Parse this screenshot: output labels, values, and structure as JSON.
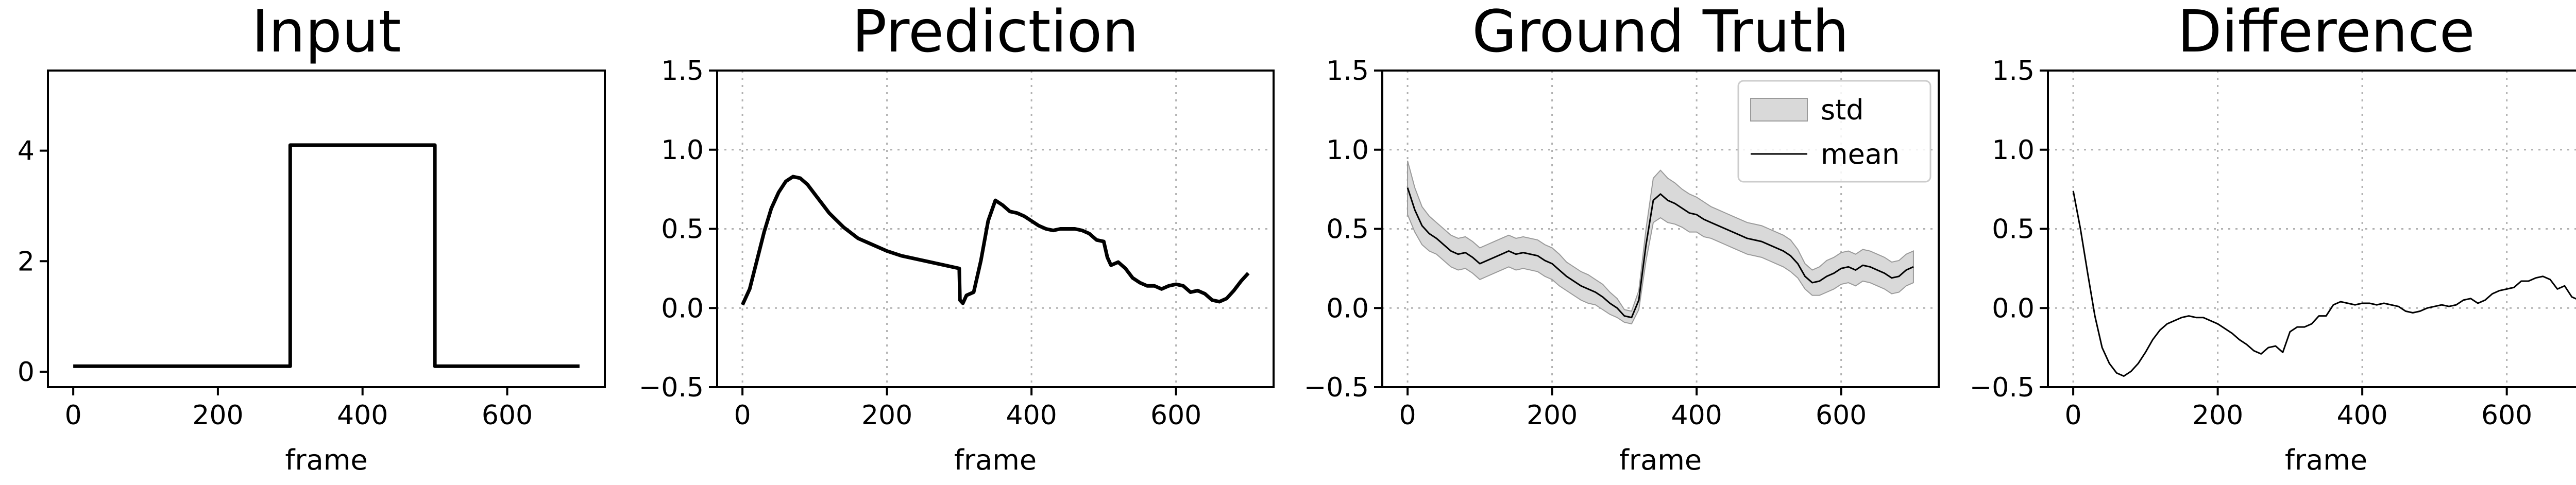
{
  "chart_data": [
    {
      "type": "line",
      "title": "Input",
      "xlabel": "frame",
      "ylabel": "",
      "xlim": [
        -35,
        735
      ],
      "ylim": [
        -0.28,
        5.45
      ],
      "xticks": [
        "0",
        "200",
        "400",
        "600"
      ],
      "yticks": [
        "0",
        "2",
        "4"
      ],
      "grid": false,
      "series": [
        {
          "color": "#000000",
          "x": [
            0,
            300,
            300,
            500,
            500,
            700
          ],
          "y": [
            0.1,
            0.1,
            4.1,
            4.1,
            0.1,
            0.1
          ]
        }
      ]
    },
    {
      "type": "line",
      "title": "Prediction",
      "xlabel": "frame",
      "ylabel": "",
      "xlim": [
        -35,
        735
      ],
      "ylim": [
        -0.5,
        1.5
      ],
      "xticks": [
        "0",
        "200",
        "400",
        "600"
      ],
      "yticks": [
        "−0.5",
        "0.0",
        "0.5",
        "1.0",
        "1.5"
      ],
      "grid": true,
      "series": [
        {
          "color": "#000000",
          "x": [
            0,
            10,
            20,
            30,
            40,
            50,
            60,
            70,
            80,
            90,
            100,
            110,
            120,
            140,
            160,
            180,
            200,
            220,
            240,
            260,
            280,
            300,
            301,
            305,
            310,
            320,
            330,
            340,
            350,
            360,
            370,
            380,
            390,
            400,
            410,
            420,
            430,
            440,
            450,
            460,
            470,
            480,
            490,
            500,
            505,
            510,
            520,
            530,
            540,
            550,
            560,
            570,
            580,
            590,
            600,
            610,
            620,
            630,
            640,
            650,
            660,
            670,
            680,
            690,
            700
          ],
          "y": [
            0.02,
            0.12,
            0.3,
            0.48,
            0.63,
            0.73,
            0.8,
            0.83,
            0.82,
            0.78,
            0.72,
            0.66,
            0.6,
            0.51,
            0.44,
            0.4,
            0.36,
            0.33,
            0.31,
            0.29,
            0.27,
            0.25,
            0.05,
            0.03,
            0.08,
            0.1,
            0.3,
            0.55,
            0.68,
            0.65,
            0.61,
            0.6,
            0.58,
            0.55,
            0.52,
            0.5,
            0.49,
            0.5,
            0.5,
            0.5,
            0.49,
            0.47,
            0.43,
            0.42,
            0.32,
            0.27,
            0.29,
            0.25,
            0.19,
            0.16,
            0.14,
            0.14,
            0.12,
            0.14,
            0.15,
            0.14,
            0.1,
            0.11,
            0.09,
            0.05,
            0.04,
            0.06,
            0.11,
            0.17,
            0.22
          ]
        }
      ]
    },
    {
      "type": "area",
      "title": "Ground Truth",
      "xlabel": "frame",
      "ylabel": "",
      "xlim": [
        -35,
        735
      ],
      "ylim": [
        -0.5,
        1.5
      ],
      "xticks": [
        "0",
        "200",
        "400",
        "600"
      ],
      "yticks": [
        "−0.5",
        "0.0",
        "0.5",
        "1.0",
        "1.5"
      ],
      "grid": true,
      "legend": {
        "position": "top-right",
        "entries": [
          "std",
          "mean"
        ]
      },
      "series": [
        {
          "name": "mean",
          "color": "#000000",
          "x": [
            0,
            10,
            20,
            30,
            40,
            50,
            60,
            70,
            80,
            90,
            100,
            110,
            120,
            130,
            140,
            150,
            160,
            170,
            180,
            190,
            200,
            210,
            220,
            230,
            240,
            250,
            260,
            270,
            280,
            290,
            300,
            310,
            320,
            330,
            340,
            350,
            360,
            370,
            380,
            390,
            400,
            410,
            420,
            430,
            440,
            450,
            460,
            470,
            480,
            490,
            500,
            510,
            520,
            530,
            540,
            550,
            560,
            570,
            580,
            590,
            600,
            610,
            620,
            630,
            640,
            650,
            660,
            670,
            680,
            690,
            700
          ],
          "y": [
            0.76,
            0.62,
            0.52,
            0.47,
            0.44,
            0.4,
            0.36,
            0.34,
            0.35,
            0.32,
            0.28,
            0.3,
            0.32,
            0.34,
            0.36,
            0.34,
            0.35,
            0.34,
            0.33,
            0.3,
            0.28,
            0.24,
            0.2,
            0.17,
            0.14,
            0.12,
            0.1,
            0.07,
            0.03,
            0.0,
            -0.05,
            -0.06,
            0.05,
            0.4,
            0.68,
            0.72,
            0.68,
            0.66,
            0.63,
            0.6,
            0.59,
            0.56,
            0.54,
            0.52,
            0.5,
            0.48,
            0.46,
            0.44,
            0.43,
            0.42,
            0.4,
            0.38,
            0.36,
            0.33,
            0.28,
            0.2,
            0.16,
            0.17,
            0.2,
            0.22,
            0.25,
            0.26,
            0.24,
            0.27,
            0.26,
            0.24,
            0.22,
            0.19,
            0.2,
            0.24,
            0.26
          ]
        },
        {
          "name": "std",
          "color": "#d9d9d9",
          "spread": [
            0.17,
            0.14,
            0.12,
            0.11,
            0.1,
            0.1,
            0.1,
            0.1,
            0.1,
            0.1,
            0.1,
            0.1,
            0.1,
            0.1,
            0.1,
            0.1,
            0.1,
            0.1,
            0.1,
            0.1,
            0.1,
            0.1,
            0.09,
            0.09,
            0.09,
            0.09,
            0.08,
            0.08,
            0.07,
            0.06,
            0.04,
            0.04,
            0.06,
            0.1,
            0.14,
            0.15,
            0.14,
            0.13,
            0.12,
            0.12,
            0.11,
            0.11,
            0.1,
            0.1,
            0.1,
            0.1,
            0.1,
            0.1,
            0.1,
            0.1,
            0.1,
            0.1,
            0.1,
            0.1,
            0.09,
            0.08,
            0.08,
            0.09,
            0.1,
            0.1,
            0.1,
            0.1,
            0.1,
            0.1,
            0.1,
            0.1,
            0.1,
            0.1,
            0.1,
            0.1,
            0.1
          ]
        }
      ]
    },
    {
      "type": "line",
      "title": "Difference",
      "xlabel": "frame",
      "ylabel": "",
      "xlim": [
        -35,
        735
      ],
      "ylim": [
        -0.5,
        1.5
      ],
      "xticks": [
        "0",
        "200",
        "400",
        "600"
      ],
      "yticks": [
        "−0.5",
        "0.0",
        "0.5",
        "1.0",
        "1.5"
      ],
      "grid": true,
      "series": [
        {
          "color": "#000000",
          "x": [
            0,
            10,
            20,
            30,
            40,
            50,
            60,
            70,
            80,
            90,
            100,
            110,
            120,
            130,
            140,
            150,
            160,
            170,
            180,
            190,
            200,
            210,
            220,
            230,
            240,
            250,
            260,
            270,
            280,
            290,
            300,
            310,
            320,
            330,
            340,
            350,
            360,
            370,
            380,
            390,
            400,
            410,
            420,
            430,
            440,
            450,
            460,
            470,
            480,
            490,
            500,
            510,
            520,
            530,
            540,
            550,
            560,
            570,
            580,
            590,
            600,
            610,
            620,
            630,
            640,
            650,
            660,
            670,
            680,
            690,
            700
          ],
          "y": [
            0.74,
            0.5,
            0.22,
            -0.05,
            -0.25,
            -0.35,
            -0.41,
            -0.43,
            -0.4,
            -0.35,
            -0.28,
            -0.2,
            -0.14,
            -0.1,
            -0.08,
            -0.06,
            -0.05,
            -0.06,
            -0.06,
            -0.08,
            -0.1,
            -0.13,
            -0.16,
            -0.2,
            -0.23,
            -0.27,
            -0.29,
            -0.25,
            -0.24,
            -0.28,
            -0.15,
            -0.12,
            -0.12,
            -0.1,
            -0.05,
            -0.05,
            0.02,
            0.04,
            0.03,
            0.02,
            0.03,
            0.03,
            0.02,
            0.03,
            0.02,
            0.01,
            -0.02,
            -0.03,
            -0.02,
            0.0,
            0.01,
            0.02,
            0.01,
            0.02,
            0.05,
            0.06,
            0.03,
            0.05,
            0.09,
            0.11,
            0.12,
            0.13,
            0.17,
            0.17,
            0.19,
            0.2,
            0.18,
            0.12,
            0.14,
            0.07,
            0.05
          ]
        }
      ]
    }
  ]
}
